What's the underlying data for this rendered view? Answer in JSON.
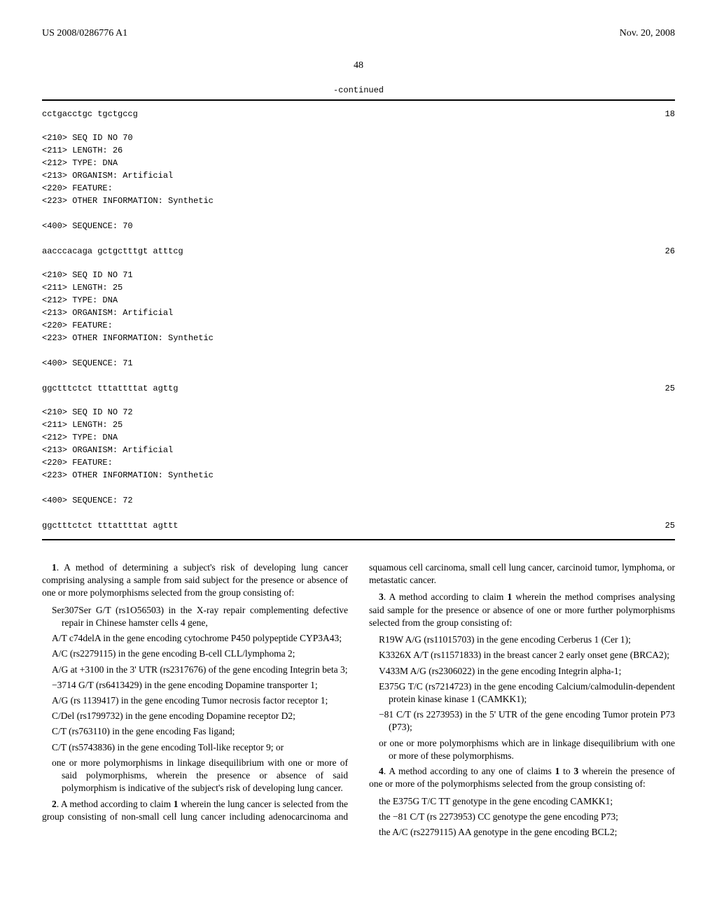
{
  "header": {
    "pub_number": "US 2008/0286776 A1",
    "pub_date": "Nov. 20, 2008"
  },
  "page_num": "48",
  "continued_label": "-continued",
  "sequences": [
    {
      "seq_line": "cctgacctgc tgctgccg",
      "seq_len_display": "18",
      "meta": []
    },
    {
      "meta": [
        "<210> SEQ ID NO 70",
        "<211> LENGTH: 26",
        "<212> TYPE: DNA",
        "<213> ORGANISM: Artificial",
        "<220> FEATURE:",
        "<223> OTHER INFORMATION: Synthetic",
        "",
        "<400> SEQUENCE: 70"
      ],
      "seq_line": "aacccacaga gctgctttgt atttcg",
      "seq_len_display": "26"
    },
    {
      "meta": [
        "<210> SEQ ID NO 71",
        "<211> LENGTH: 25",
        "<212> TYPE: DNA",
        "<213> ORGANISM: Artificial",
        "<220> FEATURE:",
        "<223> OTHER INFORMATION: Synthetic",
        "",
        "<400> SEQUENCE: 71"
      ],
      "seq_line": "ggctttctct tttattttat agttg",
      "seq_len_display": "25"
    },
    {
      "meta": [
        "<210> SEQ ID NO 72",
        "<211> LENGTH: 25",
        "<212> TYPE: DNA",
        "<213> ORGANISM: Artificial",
        "<220> FEATURE:",
        "<223> OTHER INFORMATION: Synthetic",
        "",
        "<400> SEQUENCE: 72"
      ],
      "seq_line": "ggctttctct tttattttat agttt",
      "seq_len_display": "25"
    }
  ],
  "claims": {
    "c1_lead": "1",
    "c1_text": ". A method of determining a subject's risk of developing lung cancer comprising analysing a sample from said subject for the presence or absence of one or more polymorphisms selected from the group consisting of:",
    "c1_items": [
      "Ser307Ser G/T (rs1O56503) in the X-ray repair complementing defective repair in Chinese hamster cells 4 gene,",
      "A/T c74delA in the gene encoding cytochrome P450 polypeptide CYP3A43;",
      "A/C (rs2279115) in the gene encoding B-cell CLL/lymphoma 2;",
      "A/G at +3100 in the 3' UTR (rs2317676) of the gene encoding Integrin beta 3;",
      "−3714 G/T (rs6413429) in the gene encoding Dopamine transporter 1;",
      "A/G (rs 1139417) in the gene encoding Tumor necrosis factor receptor 1;",
      "C/Del (rs1799732) in the gene encoding Dopamine receptor D2;",
      "C/T (rs763110) in the gene encoding Fas ligand;",
      "C/T (rs5743836) in the gene encoding Toll-like receptor 9; or",
      "one or more polymorphisms in linkage disequilibrium with one or more of said polymorphisms, wherein the presence or absence of said polymorphism is indicative of the subject's risk of developing lung cancer."
    ],
    "c2_lead": "2",
    "c2_text": ". A method according to claim ",
    "c2_ref": "1",
    "c2_tail": " wherein the lung cancer is selected from the group consisting of non-small cell lung cancer including adenocarcinoma and squamous cell carcinoma, small cell lung cancer, carcinoid tumor, lymphoma, or metastatic cancer.",
    "c3_lead": "3",
    "c3_text": ". A method according to claim ",
    "c3_ref": "1",
    "c3_tail": " wherein the method comprises analysing said sample for the presence or absence of one or more further polymorphisms selected from the group consisting of:",
    "c3_items": [
      "R19W A/G (rs11015703) in the gene encoding Cerberus 1 (Cer 1);",
      "K3326X A/T (rs11571833) in the breast cancer 2 early onset gene (BRCA2);",
      "V433M A/G (rs2306022) in the gene encoding Integrin alpha-1;",
      "E375G T/C (rs7214723) in the gene encoding Calcium/calmodulin-dependent protein kinase kinase 1 (CAMKK1);",
      "−81 C/T (rs 2273953) in the 5' UTR of the gene encoding Tumor protein P73 (P73);",
      "or one or more polymorphisms which are in linkage disequilibrium with one or more of these polymorphisms."
    ],
    "c4_lead": "4",
    "c4_text": ". A method according to any one of claims ",
    "c4_ref1": "1",
    "c4_mid": " to ",
    "c4_ref2": "3",
    "c4_tail": " wherein the presence of one or more of the polymorphisms selected from the group consisting of:",
    "c4_items": [
      "the E375G T/C TT genotype in the gene encoding CAMKK1;",
      "the −81 C/T (rs 2273953) CC genotype the gene encoding P73;",
      "the A/C (rs2279115) AA genotype in the gene encoding BCL2;"
    ]
  }
}
